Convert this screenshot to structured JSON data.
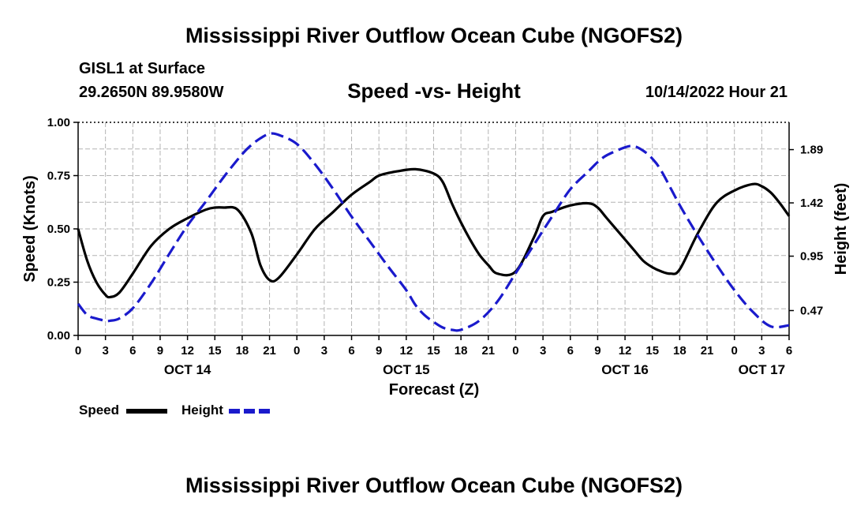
{
  "header": {
    "title": "Mississippi River Outflow Ocean Cube (NGOFS2)",
    "station": "GISL1 at Surface",
    "coords": "29.2650N  89.9580W",
    "subtitle": "Speed -vs- Height",
    "datetime": "10/14/2022 Hour 21"
  },
  "footer": {
    "title": "Mississippi River Outflow Ocean Cube (NGOFS2)"
  },
  "legend": {
    "speed_label": "Speed",
    "height_label": "Height"
  },
  "colors": {
    "speed": "#000000",
    "height": "#1a1acc",
    "grid": "#b4b4b4"
  },
  "chart_data": {
    "type": "line",
    "title": "Speed -vs- Height",
    "xlabel": "Forecast (Z)",
    "ylabel": "Speed (Knots)",
    "y2label": "Height (feet)",
    "xlim": [
      0,
      78
    ],
    "ylim": [
      0,
      1
    ],
    "y2ticks": [
      0.47,
      0.95,
      1.42,
      1.89
    ],
    "yticks": [
      0,
      0.25,
      0.5,
      0.75,
      1.0
    ],
    "ytick_labels": [
      "0.00",
      "0.25",
      "0.50",
      "0.75",
      "1.00"
    ],
    "x_tick_labels": [
      "0",
      "3",
      "6",
      "9",
      "12",
      "15",
      "18",
      "21",
      "0",
      "3",
      "6",
      "9",
      "12",
      "15",
      "18",
      "21",
      "0",
      "3",
      "6",
      "9",
      "12",
      "15",
      "18",
      "21",
      "0",
      "3",
      "6"
    ],
    "day_labels": [
      {
        "label": "OCT 14",
        "x": 12
      },
      {
        "label": "OCT 15",
        "x": 36
      },
      {
        "label": "OCT 16",
        "x": 60
      },
      {
        "label": "OCT 17",
        "x": 75
      }
    ],
    "series": [
      {
        "name": "Speed",
        "style": "solid",
        "axis": "left",
        "x": [
          0,
          1,
          2,
          3,
          3.5,
          4.5,
          6,
          8,
          10,
          12,
          14,
          15,
          16,
          17.5,
          19,
          20,
          21,
          22,
          24,
          26,
          28,
          30,
          32,
          33,
          35,
          37,
          39,
          40,
          41,
          42,
          43,
          44,
          45,
          46,
          48,
          50,
          51,
          52,
          54,
          56,
          57,
          58,
          60,
          61,
          62,
          63,
          64,
          65,
          66,
          68,
          70,
          72,
          74,
          75,
          76,
          77,
          78
        ],
        "y": [
          0.5,
          0.35,
          0.25,
          0.19,
          0.18,
          0.2,
          0.29,
          0.42,
          0.5,
          0.55,
          0.59,
          0.6,
          0.6,
          0.59,
          0.48,
          0.33,
          0.26,
          0.27,
          0.38,
          0.5,
          0.58,
          0.66,
          0.72,
          0.75,
          0.77,
          0.78,
          0.76,
          0.72,
          0.62,
          0.53,
          0.45,
          0.38,
          0.33,
          0.29,
          0.3,
          0.46,
          0.56,
          0.58,
          0.61,
          0.62,
          0.6,
          0.55,
          0.45,
          0.4,
          0.35,
          0.32,
          0.3,
          0.29,
          0.31,
          0.48,
          0.62,
          0.68,
          0.71,
          0.7,
          0.67,
          0.62,
          0.56
        ]
      },
      {
        "name": "Height",
        "style": "dashed",
        "axis": "right",
        "x": [
          0,
          1,
          2,
          3,
          3.5,
          4.5,
          6,
          8,
          10,
          12,
          14,
          16,
          18,
          19,
          20,
          21,
          22,
          24,
          26,
          28,
          30,
          32,
          34,
          36,
          37,
          38,
          39,
          40,
          41,
          42,
          44,
          46,
          48,
          50,
          52,
          54,
          56,
          57,
          58,
          60,
          61,
          62,
          63,
          64,
          66,
          68,
          70,
          72,
          74,
          76,
          78
        ],
        "y": [
          0.53,
          0.43,
          0.4,
          0.38,
          0.38,
          0.4,
          0.49,
          0.71,
          0.97,
          1.22,
          1.43,
          1.65,
          1.85,
          1.93,
          1.99,
          2.03,
          2.02,
          1.94,
          1.76,
          1.54,
          1.3,
          1.08,
          0.86,
          0.65,
          0.52,
          0.43,
          0.37,
          0.32,
          0.3,
          0.3,
          0.38,
          0.55,
          0.8,
          1.05,
          1.3,
          1.54,
          1.7,
          1.78,
          1.84,
          1.91,
          1.92,
          1.88,
          1.81,
          1.7,
          1.4,
          1.13,
          0.88,
          0.65,
          0.46,
          0.33,
          0.34
        ]
      }
    ]
  }
}
